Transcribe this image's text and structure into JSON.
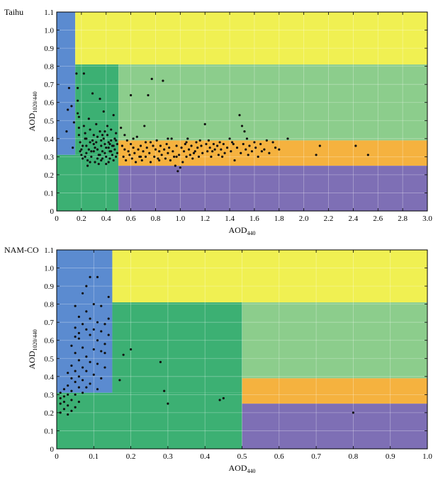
{
  "chart_data": [
    {
      "type": "scatter",
      "panel_label": "Taihu",
      "xlabel": "AOD",
      "xlabel_sub": "440",
      "ylabel": "AOD",
      "ylabel_sub": "1020/440",
      "xlim": [
        0,
        3.0
      ],
      "ylim": [
        0,
        1.1
      ],
      "xticks": [
        0,
        0.2,
        0.4,
        0.6,
        0.8,
        1.0,
        1.2,
        1.4,
        1.6,
        1.8,
        2.0,
        2.2,
        2.4,
        2.6,
        2.8,
        3.0
      ],
      "xtick_labels": [
        "0",
        "0.2",
        "0.4",
        "0.6",
        "0.8",
        "1.0",
        "1.2",
        "1.4",
        "1.6",
        "1.8",
        "2.0",
        "2.2",
        "2.4",
        "2.6",
        "2.8",
        "3.0"
      ],
      "yticks": [
        0,
        0.1,
        0.2,
        0.3,
        0.4,
        0.5,
        0.6,
        0.7,
        0.8,
        0.9,
        1.0,
        1.1
      ],
      "ytick_labels": [
        "0",
        "0.1",
        "0.2",
        "0.3",
        "0.4",
        "0.5",
        "0.6",
        "0.7",
        "0.8",
        "0.9",
        "1.0",
        "1.1"
      ],
      "grid": true,
      "regions": [
        {
          "name": "blue",
          "color": "#5b8bd0",
          "x0": 0,
          "x1": 0.15,
          "y0": 0.31,
          "y1": 1.1
        },
        {
          "name": "yellow",
          "color": "#f0f052",
          "x0": 0.15,
          "x1": 3.0,
          "y0": 0.81,
          "y1": 1.1
        },
        {
          "name": "dark-green",
          "color": "#3cb073",
          "x0": 0,
          "x1": 0.5,
          "y0": 0,
          "y1": 0.31
        },
        {
          "name": "dark-green",
          "color": "#3cb073",
          "x0": 0.15,
          "x1": 0.5,
          "y0": 0.31,
          "y1": 0.81
        },
        {
          "name": "light-green",
          "color": "#8ccd8c",
          "x0": 0.5,
          "x1": 3.0,
          "y0": 0.39,
          "y1": 0.81
        },
        {
          "name": "orange",
          "color": "#f5b23f",
          "x0": 0.5,
          "x1": 3.0,
          "y0": 0.25,
          "y1": 0.39
        },
        {
          "name": "purple",
          "color": "#7e6fb5",
          "x0": 0.5,
          "x1": 3.0,
          "y0": 0,
          "y1": 0.25
        }
      ],
      "points": [
        [
          0.08,
          0.44
        ],
        [
          0.09,
          0.56
        ],
        [
          0.1,
          0.68
        ],
        [
          0.12,
          0.58
        ],
        [
          0.13,
          0.35
        ],
        [
          0.14,
          0.49
        ],
        [
          0.16,
          0.76
        ],
        [
          0.17,
          0.68
        ],
        [
          0.17,
          0.61
        ],
        [
          0.17,
          0.54
        ],
        [
          0.18,
          0.52
        ],
        [
          0.18,
          0.46
        ],
        [
          0.18,
          0.42
        ],
        [
          0.19,
          0.38
        ],
        [
          0.2,
          0.34
        ],
        [
          0.2,
          0.31
        ],
        [
          0.21,
          0.29
        ],
        [
          0.22,
          0.76
        ],
        [
          0.22,
          0.47
        ],
        [
          0.23,
          0.43
        ],
        [
          0.23,
          0.4
        ],
        [
          0.24,
          0.36
        ],
        [
          0.24,
          0.32
        ],
        [
          0.25,
          0.28
        ],
        [
          0.25,
          0.25
        ],
        [
          0.26,
          0.51
        ],
        [
          0.27,
          0.45
        ],
        [
          0.27,
          0.38
        ],
        [
          0.28,
          0.33
        ],
        [
          0.28,
          0.3
        ],
        [
          0.29,
          0.65
        ],
        [
          0.3,
          0.42
        ],
        [
          0.3,
          0.37
        ],
        [
          0.31,
          0.35
        ],
        [
          0.31,
          0.27
        ],
        [
          0.32,
          0.48
        ],
        [
          0.33,
          0.41
        ],
        [
          0.33,
          0.34
        ],
        [
          0.34,
          0.31
        ],
        [
          0.34,
          0.26
        ],
        [
          0.35,
          0.62
        ],
        [
          0.35,
          0.44
        ],
        [
          0.36,
          0.39
        ],
        [
          0.36,
          0.36
        ],
        [
          0.37,
          0.33
        ],
        [
          0.37,
          0.29
        ],
        [
          0.38,
          0.55
        ],
        [
          0.38,
          0.4
        ],
        [
          0.39,
          0.37
        ],
        [
          0.39,
          0.32
        ],
        [
          0.4,
          0.3
        ],
        [
          0.4,
          0.26
        ],
        [
          0.41,
          0.47
        ],
        [
          0.41,
          0.42
        ],
        [
          0.42,
          0.38
        ],
        [
          0.42,
          0.35
        ],
        [
          0.43,
          0.33
        ],
        [
          0.43,
          0.29
        ],
        [
          0.44,
          0.45
        ],
        [
          0.44,
          0.39
        ],
        [
          0.45,
          0.36
        ],
        [
          0.45,
          0.31
        ],
        [
          0.46,
          0.28
        ],
        [
          0.46,
          0.53
        ],
        [
          0.47,
          0.4
        ],
        [
          0.47,
          0.34
        ],
        [
          0.48,
          0.3
        ],
        [
          0.48,
          0.43
        ],
        [
          0.49,
          0.37
        ],
        [
          0.49,
          0.32
        ],
        [
          0.21,
          0.36
        ],
        [
          0.26,
          0.34
        ],
        [
          0.32,
          0.38
        ],
        [
          0.35,
          0.31
        ],
        [
          0.4,
          0.35
        ],
        [
          0.44,
          0.33
        ],
        [
          0.29,
          0.39
        ],
        [
          0.37,
          0.42
        ],
        [
          0.23,
          0.3
        ],
        [
          0.27,
          0.27
        ],
        [
          0.33,
          0.29
        ],
        [
          0.42,
          0.27
        ],
        [
          0.46,
          0.36
        ],
        [
          0.48,
          0.39
        ],
        [
          0.19,
          0.33
        ],
        [
          0.24,
          0.4
        ],
        [
          0.3,
          0.33
        ],
        [
          0.36,
          0.28
        ],
        [
          0.39,
          0.44
        ],
        [
          0.43,
          0.37
        ],
        [
          0.52,
          0.46
        ],
        [
          0.53,
          0.36
        ],
        [
          0.54,
          0.3
        ],
        [
          0.55,
          0.34
        ],
        [
          0.56,
          0.28
        ],
        [
          0.57,
          0.39
        ],
        [
          0.58,
          0.33
        ],
        [
          0.59,
          0.31
        ],
        [
          0.6,
          0.64
        ],
        [
          0.6,
          0.37
        ],
        [
          0.61,
          0.29
        ],
        [
          0.62,
          0.35
        ],
        [
          0.63,
          0.32
        ],
        [
          0.64,
          0.27
        ],
        [
          0.65,
          0.41
        ],
        [
          0.66,
          0.34
        ],
        [
          0.67,
          0.3
        ],
        [
          0.68,
          0.36
        ],
        [
          0.69,
          0.28
        ],
        [
          0.7,
          0.33
        ],
        [
          0.71,
          0.47
        ],
        [
          0.72,
          0.38
        ],
        [
          0.72,
          0.3
        ],
        [
          0.73,
          0.35
        ],
        [
          0.74,
          0.64
        ],
        [
          0.75,
          0.32
        ],
        [
          0.76,
          0.27
        ],
        [
          0.77,
          0.73
        ],
        [
          0.78,
          0.36
        ],
        [
          0.79,
          0.3
        ],
        [
          0.8,
          0.34
        ],
        [
          0.81,
          0.39
        ],
        [
          0.82,
          0.29
        ],
        [
          0.83,
          0.33
        ],
        [
          0.84,
          0.36
        ],
        [
          0.85,
          0.31
        ],
        [
          0.86,
          0.72
        ],
        [
          0.87,
          0.34
        ],
        [
          0.88,
          0.29
        ],
        [
          0.89,
          0.37
        ],
        [
          0.9,
          0.32
        ],
        [
          0.91,
          0.35
        ],
        [
          0.92,
          0.28
        ],
        [
          0.93,
          0.4
        ],
        [
          0.94,
          0.33
        ],
        [
          0.95,
          0.3
        ],
        [
          0.96,
          0.25
        ],
        [
          0.97,
          0.36
        ],
        [
          0.98,
          0.22
        ],
        [
          0.99,
          0.31
        ],
        [
          1.0,
          0.24
        ],
        [
          1.01,
          0.35
        ],
        [
          1.02,
          0.27
        ],
        [
          1.03,
          0.33
        ],
        [
          1.04,
          0.37
        ],
        [
          1.05,
          0.3
        ],
        [
          1.06,
          0.4
        ],
        [
          1.07,
          0.34
        ],
        [
          1.08,
          0.31
        ],
        [
          1.09,
          0.36
        ],
        [
          1.1,
          0.29
        ],
        [
          1.12,
          0.33
        ],
        [
          1.13,
          0.38
        ],
        [
          1.14,
          0.35
        ],
        [
          1.15,
          0.3
        ],
        [
          1.17,
          0.36
        ],
        [
          1.18,
          0.32
        ],
        [
          1.2,
          0.48
        ],
        [
          1.21,
          0.37
        ],
        [
          1.22,
          0.33
        ],
        [
          1.23,
          0.39
        ],
        [
          1.24,
          0.35
        ],
        [
          1.25,
          0.3
        ],
        [
          1.27,
          0.37
        ],
        [
          1.28,
          0.34
        ],
        [
          1.3,
          0.36
        ],
        [
          1.31,
          0.31
        ],
        [
          1.32,
          0.38
        ],
        [
          1.33,
          0.34
        ],
        [
          1.35,
          0.37
        ],
        [
          1.36,
          0.32
        ],
        [
          1.38,
          0.35
        ],
        [
          1.4,
          0.4
        ],
        [
          1.41,
          0.33
        ],
        [
          1.43,
          0.37
        ],
        [
          1.44,
          0.28
        ],
        [
          1.46,
          0.35
        ],
        [
          1.48,
          0.53
        ],
        [
          1.49,
          0.32
        ],
        [
          1.5,
          0.47
        ],
        [
          1.51,
          0.37
        ],
        [
          1.52,
          0.44
        ],
        [
          1.53,
          0.34
        ],
        [
          1.55,
          0.31
        ],
        [
          1.56,
          0.36
        ],
        [
          1.58,
          0.33
        ],
        [
          1.6,
          0.38
        ],
        [
          1.61,
          0.35
        ],
        [
          1.63,
          0.3
        ],
        [
          1.65,
          0.37
        ],
        [
          1.68,
          0.34
        ],
        [
          1.7,
          0.39
        ],
        [
          1.72,
          0.32
        ],
        [
          1.75,
          0.38
        ],
        [
          1.77,
          0.35
        ],
        [
          1.8,
          0.34
        ],
        [
          1.87,
          0.4
        ],
        [
          2.1,
          0.31
        ],
        [
          2.13,
          0.36
        ],
        [
          2.42,
          0.36
        ],
        [
          2.52,
          0.31
        ],
        [
          0.55,
          0.42
        ],
        [
          0.62,
          0.4
        ],
        [
          0.68,
          0.3
        ],
        [
          0.76,
          0.38
        ],
        [
          0.83,
          0.28
        ],
        [
          0.9,
          0.4
        ],
        [
          0.97,
          0.3
        ],
        [
          1.05,
          0.38
        ],
        [
          1.11,
          0.32
        ],
        [
          1.16,
          0.39
        ],
        [
          1.26,
          0.33
        ],
        [
          1.34,
          0.3
        ],
        [
          1.42,
          0.38
        ],
        [
          1.54,
          0.4
        ],
        [
          1.66,
          0.33
        ]
      ]
    },
    {
      "type": "scatter",
      "panel_label": "NAM-CO",
      "xlabel": "AOD",
      "xlabel_sub": "440",
      "ylabel": "AOD",
      "ylabel_sub": "1020/440",
      "xlim": [
        0,
        1.0
      ],
      "ylim": [
        0,
        1.1
      ],
      "xticks": [
        0,
        0.1,
        0.2,
        0.3,
        0.4,
        0.5,
        0.6,
        0.7,
        0.8,
        0.9,
        1.0
      ],
      "xtick_labels": [
        "0",
        "0.1",
        "0.2",
        "0.3",
        "0.4",
        "0.5",
        "0.6",
        "0.7",
        "0.8",
        "0.9",
        "1.0"
      ],
      "yticks": [
        0,
        0.1,
        0.2,
        0.3,
        0.4,
        0.5,
        0.6,
        0.7,
        0.8,
        0.9,
        1.0,
        1.1
      ],
      "ytick_labels": [
        "0",
        "0.1",
        "0.2",
        "0.3",
        "0.4",
        "0.5",
        "0.6",
        "0.7",
        "0.8",
        "0.9",
        "1.0",
        "1.1"
      ],
      "grid": true,
      "regions": [
        {
          "name": "blue",
          "color": "#5b8bd0",
          "x0": 0,
          "x1": 0.15,
          "y0": 0.31,
          "y1": 1.1
        },
        {
          "name": "yellow",
          "color": "#f0f052",
          "x0": 0.15,
          "x1": 1.0,
          "y0": 0.81,
          "y1": 1.1
        },
        {
          "name": "dark-green",
          "color": "#3cb073",
          "x0": 0,
          "x1": 0.5,
          "y0": 0,
          "y1": 0.31
        },
        {
          "name": "dark-green",
          "color": "#3cb073",
          "x0": 0.15,
          "x1": 0.5,
          "y0": 0.31,
          "y1": 0.81
        },
        {
          "name": "light-green",
          "color": "#8ccd8c",
          "x0": 0.5,
          "x1": 1.0,
          "y0": 0.39,
          "y1": 0.81
        },
        {
          "name": "orange",
          "color": "#f5b23f",
          "x0": 0.5,
          "x1": 1.0,
          "y0": 0.25,
          "y1": 0.39
        },
        {
          "name": "purple",
          "color": "#7e6fb5",
          "x0": 0.5,
          "x1": 1.0,
          "y0": 0,
          "y1": 0.25
        }
      ],
      "points": [
        [
          0.09,
          0.95
        ],
        [
          0.11,
          0.95
        ],
        [
          0.08,
          0.9
        ],
        [
          0.07,
          0.86
        ],
        [
          0.14,
          0.84
        ],
        [
          0.1,
          0.8
        ],
        [
          0.12,
          0.79
        ],
        [
          0.05,
          0.79
        ],
        [
          0.08,
          0.76
        ],
        [
          0.06,
          0.73
        ],
        [
          0.09,
          0.72
        ],
        [
          0.11,
          0.7
        ],
        [
          0.07,
          0.69
        ],
        [
          0.13,
          0.69
        ],
        [
          0.05,
          0.67
        ],
        [
          0.08,
          0.66
        ],
        [
          0.1,
          0.66
        ],
        [
          0.12,
          0.65
        ],
        [
          0.06,
          0.64
        ],
        [
          0.09,
          0.63
        ],
        [
          0.05,
          0.62
        ],
        [
          0.06,
          0.61
        ],
        [
          0.11,
          0.6
        ],
        [
          0.13,
          0.58
        ],
        [
          0.04,
          0.57
        ],
        [
          0.07,
          0.56
        ],
        [
          0.1,
          0.55
        ],
        [
          0.12,
          0.54
        ],
        [
          0.05,
          0.53
        ],
        [
          0.08,
          0.51
        ],
        [
          0.06,
          0.49
        ],
        [
          0.09,
          0.48
        ],
        [
          0.11,
          0.47
        ],
        [
          0.04,
          0.46
        ],
        [
          0.07,
          0.45
        ],
        [
          0.13,
          0.45
        ],
        [
          0.05,
          0.43
        ],
        [
          0.08,
          0.43
        ],
        [
          0.03,
          0.42
        ],
        [
          0.1,
          0.41
        ],
        [
          0.06,
          0.4
        ],
        [
          0.04,
          0.39
        ],
        [
          0.12,
          0.39
        ],
        [
          0.07,
          0.38
        ],
        [
          0.05,
          0.37
        ],
        [
          0.09,
          0.36
        ],
        [
          0.03,
          0.35
        ],
        [
          0.06,
          0.34
        ],
        [
          0.08,
          0.34
        ],
        [
          0.02,
          0.33
        ],
        [
          0.11,
          0.33
        ],
        [
          0.04,
          0.32
        ],
        [
          0.07,
          0.31
        ],
        [
          0.01,
          0.31
        ],
        [
          0.03,
          0.3
        ],
        [
          0.05,
          0.3
        ],
        [
          0.02,
          0.29
        ],
        [
          0.01,
          0.28
        ],
        [
          0.04,
          0.27
        ],
        [
          0.02,
          0.26
        ],
        [
          0.06,
          0.26
        ],
        [
          0.01,
          0.25
        ],
        [
          0.03,
          0.24
        ],
        [
          0.05,
          0.23
        ],
        [
          0.02,
          0.22
        ],
        [
          0.04,
          0.21
        ],
        [
          0.01,
          0.2
        ],
        [
          0.03,
          0.19
        ],
        [
          0.14,
          0.72
        ],
        [
          0.14,
          0.63
        ],
        [
          0.13,
          0.53
        ],
        [
          0.18,
          0.52
        ],
        [
          0.2,
          0.55
        ],
        [
          0.17,
          0.38
        ],
        [
          0.28,
          0.48
        ],
        [
          0.29,
          0.32
        ],
        [
          0.3,
          0.25
        ],
        [
          0.44,
          0.27
        ],
        [
          0.45,
          0.28
        ],
        [
          0.8,
          0.2
        ]
      ]
    }
  ]
}
